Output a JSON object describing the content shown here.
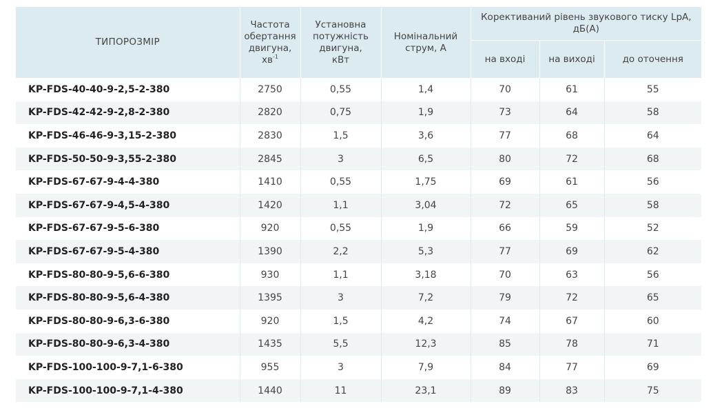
{
  "headers": {
    "model": "ТИПОРОЗМІР",
    "speed_line1": "Частота",
    "speed_line2": "обертання",
    "speed_line3": "двигуна,",
    "speed_unit": "хв",
    "speed_unit_sup": "-1",
    "power_line1": "Установна",
    "power_line2": "потужність",
    "power_line3": "двигуна,",
    "power_unit": "кВт",
    "current_line1": "Номінальний",
    "current_line2": "струм, А",
    "noise_line1": "Корективаний рівень звукового тиску LpA,",
    "noise_line2": "дБ(А)",
    "inlet": "на вході",
    "outlet": "на виході",
    "surroundings": "до оточення"
  },
  "rows": [
    {
      "model": "KP-FDS-40-40-9-2,5-2-380",
      "speed": "2750",
      "power": "0,55",
      "current": "1,4",
      "inlet": "70",
      "outlet": "61",
      "surroundings": "55"
    },
    {
      "model": "KP-FDS-42-42-9-2,8-2-380",
      "speed": "2820",
      "power": "0,75",
      "current": "1,9",
      "inlet": "73",
      "outlet": "64",
      "surroundings": "58"
    },
    {
      "model": "KP-FDS-46-46-9-3,15-2-380",
      "speed": "2830",
      "power": "1,5",
      "current": "3,6",
      "inlet": "77",
      "outlet": "68",
      "surroundings": "64"
    },
    {
      "model": "KP-FDS-50-50-9-3,55-2-380",
      "speed": "2845",
      "power": "3",
      "current": "6,5",
      "inlet": "80",
      "outlet": "72",
      "surroundings": "68"
    },
    {
      "model": "KP-FDS-67-67-9-4-4-380",
      "speed": "1410",
      "power": "0,55",
      "current": "1,75",
      "inlet": "69",
      "outlet": "61",
      "surroundings": "56"
    },
    {
      "model": "KP-FDS-67-67-9-4,5-4-380",
      "speed": "1420",
      "power": "1,1",
      "current": "3,04",
      "inlet": "72",
      "outlet": "65",
      "surroundings": "58"
    },
    {
      "model": "KP-FDS-67-67-9-5-6-380",
      "speed": "920",
      "power": "0,55",
      "current": "1,9",
      "inlet": "66",
      "outlet": "59",
      "surroundings": "52"
    },
    {
      "model": "KP-FDS-67-67-9-5-4-380",
      "speed": "1390",
      "power": "2,2",
      "current": "5,3",
      "inlet": "77",
      "outlet": "69",
      "surroundings": "62"
    },
    {
      "model": "KP-FDS-80-80-9-5,6-6-380",
      "speed": "930",
      "power": "1,1",
      "current": "3,18",
      "inlet": "70",
      "outlet": "63",
      "surroundings": "56"
    },
    {
      "model": "KP-FDS-80-80-9-5,6-4-380",
      "speed": "1395",
      "power": "3",
      "current": "7,2",
      "inlet": "79",
      "outlet": "72",
      "surroundings": "65"
    },
    {
      "model": "KP-FDS-80-80-9-6,3-6-380",
      "speed": "920",
      "power": "1,5",
      "current": "4,2",
      "inlet": "74",
      "outlet": "67",
      "surroundings": "60"
    },
    {
      "model": "KP-FDS-80-80-9-6,3-4-380",
      "speed": "1435",
      "power": "5,5",
      "current": "12,3",
      "inlet": "85",
      "outlet": "78",
      "surroundings": "71"
    },
    {
      "model": "KP-FDS-100-100-9-7,1-6-380",
      "speed": "955",
      "power": "3",
      "current": "7,9",
      "inlet": "84",
      "outlet": "77",
      "surroundings": "69"
    },
    {
      "model": "KP-FDS-100-100-9-7,1-4-380",
      "speed": "1440",
      "power": "11",
      "current": "23,1",
      "inlet": "89",
      "outlet": "83",
      "surroundings": "75"
    }
  ]
}
